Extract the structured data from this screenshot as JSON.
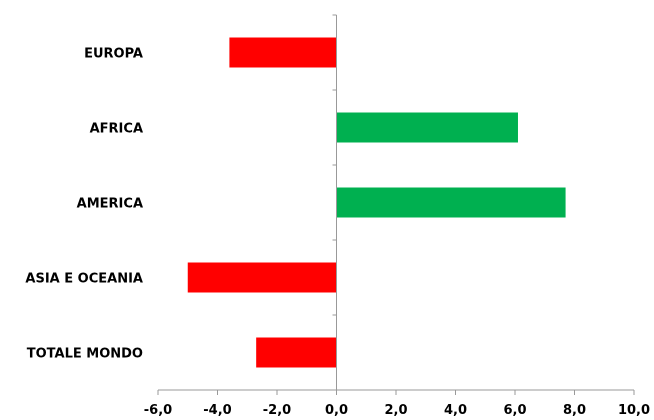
{
  "chart_data": {
    "type": "bar",
    "orientation": "horizontal",
    "categories": [
      "EUROPA",
      "AFRICA",
      "AMERICA",
      "ASIA E OCEANIA",
      "TOTALE MONDO"
    ],
    "values": [
      -3.6,
      6.1,
      7.7,
      -5.0,
      -2.7
    ],
    "xlim": [
      -6,
      10
    ],
    "xticks": [
      -6,
      -4,
      -2,
      0,
      2,
      4,
      6,
      8,
      10
    ],
    "xtick_labels": [
      "-6,0",
      "-4,0",
      "-2,0",
      "0,0",
      "2,0",
      "4,0",
      "6,0",
      "8,0",
      "10,0"
    ],
    "title": "",
    "xlabel": "",
    "ylabel": "",
    "grid": false,
    "legend": "none",
    "colors": {
      "negative": "#ff0000",
      "positive": "#00b050",
      "axis": "#999999"
    }
  }
}
